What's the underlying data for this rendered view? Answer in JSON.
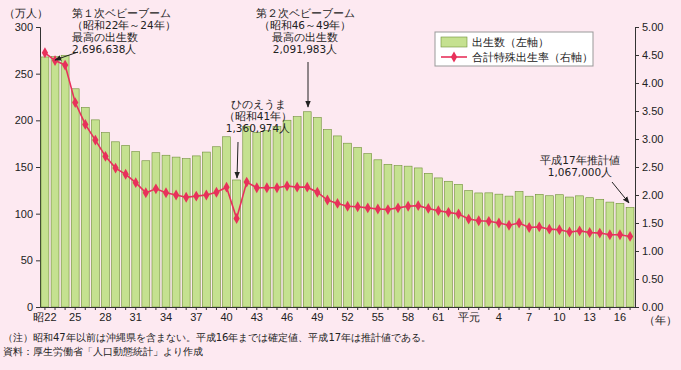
{
  "chart_data": {
    "type": "bar",
    "y_label": "（万人）",
    "x_label": "（年）",
    "categories": [
      "昭22",
      null,
      null,
      "25",
      null,
      null,
      "28",
      null,
      null,
      "31",
      null,
      null,
      "34",
      null,
      null,
      "37",
      null,
      null,
      "40",
      null,
      null,
      "43",
      null,
      null,
      "46",
      null,
      null,
      "49",
      null,
      null,
      "52",
      null,
      null,
      "55",
      null,
      null,
      "58",
      null,
      null,
      "61",
      null,
      null,
      "平元",
      null,
      null,
      "4",
      null,
      null,
      "7",
      null,
      null,
      "10",
      null,
      null,
      "13",
      null,
      null,
      "16",
      null
    ],
    "series": [
      {
        "name": "出生数（左軸）",
        "type": "bar",
        "color": "#c5e190",
        "values": [
          267.9,
          268.2,
          269.7,
          233.8,
          213.8,
          200.5,
          186.8,
          177.0,
          173.1,
          166.5,
          156.7,
          165.3,
          162.6,
          160.6,
          158.9,
          161.9,
          166.0,
          171.7,
          182.4,
          136.1,
          193.6,
          187.2,
          188.9,
          193.4,
          200.1,
          203.9,
          209.2,
          203.0,
          190.1,
          183.3,
          175.5,
          170.9,
          164.3,
          157.7,
          152.9,
          151.5,
          150.9,
          149.0,
          143.2,
          138.3,
          134.7,
          131.4,
          124.7,
          122.2,
          122.3,
          120.9,
          118.8,
          123.8,
          118.7,
          120.7,
          119.2,
          120.3,
          117.8,
          119.1,
          117.1,
          115.4,
          112.4,
          111.1,
          106.7
        ]
      },
      {
        "name": "合計特殊出生率（右軸）",
        "type": "line",
        "axis": "y2",
        "color": "#e8315b",
        "marker": "diamond",
        "line_style": "solid",
        "values": [
          4.54,
          4.4,
          4.32,
          3.65,
          3.26,
          2.98,
          2.69,
          2.48,
          2.37,
          2.22,
          2.04,
          2.11,
          2.04,
          2.0,
          1.96,
          1.98,
          2.0,
          2.05,
          2.14,
          1.58,
          2.23,
          2.13,
          2.13,
          2.13,
          2.16,
          2.14,
          2.14,
          2.05,
          1.91,
          1.85,
          1.8,
          1.79,
          1.77,
          1.75,
          1.74,
          1.77,
          1.8,
          1.81,
          1.76,
          1.72,
          1.69,
          1.66,
          1.57,
          1.54,
          1.53,
          1.5,
          1.46,
          1.5,
          1.42,
          1.43,
          1.39,
          1.38,
          1.34,
          1.36,
          1.33,
          1.32,
          1.29,
          1.29,
          1.26
        ]
      }
    ],
    "ylim": [
      0,
      300
    ],
    "yticks": [
      0,
      50,
      100,
      150,
      200,
      250,
      300
    ],
    "y2lim": [
      0,
      5
    ],
    "y2ticks": [
      {
        "value": 0,
        "label": "0.00"
      },
      {
        "value": 0.5,
        "label": "0.50"
      },
      {
        "value": 1,
        "label": "1.00"
      },
      {
        "value": 1.5,
        "label": "1.50"
      },
      {
        "value": 2,
        "label": "2.00"
      },
      {
        "value": 2.5,
        "label": "2.50"
      },
      {
        "value": 3,
        "label": "3.00"
      },
      {
        "value": 3.5,
        "label": "3.50"
      },
      {
        "value": 4,
        "label": "4.00"
      },
      {
        "value": 4.5,
        "label": "4.50"
      },
      {
        "value": 5,
        "label": "5.00"
      }
    ],
    "grid": false,
    "legend": "top-right",
    "annotations": [
      {
        "text": [
          "第１次ベビーブーム",
          "（昭和22年～24年）",
          "最高の出生数",
          "2,696,638人"
        ]
      },
      {
        "text": [
          "ひのえうま",
          "（昭和41年）",
          "1,360,974人"
        ]
      },
      {
        "text": [
          "第２次ベビーブーム",
          "（昭和46～49年）",
          "最高の出生数",
          "2,091,983人"
        ]
      },
      {
        "text": [
          "平成17年推計値",
          "1,067,000人"
        ]
      }
    ],
    "notes": [
      "（注）昭和47年以前は沖縄県を含まない。平成16年までは確定値、平成17年は推計値である。",
      "資料：厚生労働省「人口動態統計」より作成"
    ]
  }
}
